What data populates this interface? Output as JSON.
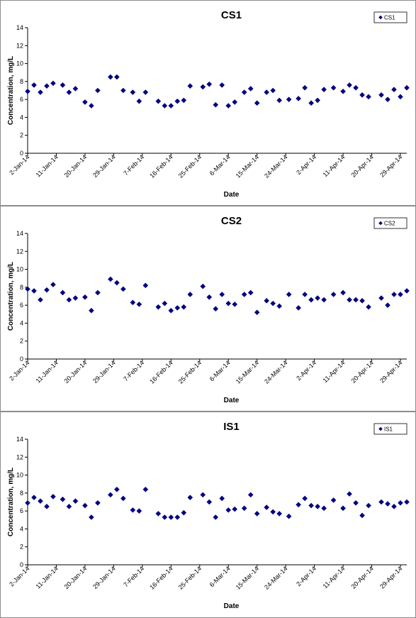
{
  "chart_data": [
    {
      "type": "scatter",
      "title": "CS1",
      "xlabel": "Date",
      "ylabel": "Concentration, mg/L",
      "ylim": [
        0,
        14
      ],
      "yticks": [
        "0",
        "2",
        "4",
        "6",
        "8",
        "10",
        "12",
        "14"
      ],
      "xlim": [
        "2014-01-02",
        "2014-05-01"
      ],
      "xticks": [
        "2-Jan-14",
        "11-Jan-14",
        "20-Jan-14",
        "29-Jan-14",
        "7-Feb-14",
        "16-Feb-14",
        "25-Feb-14",
        "6-Mar-14",
        "15-Mar-14",
        "24-Mar-14",
        "2-Apr-14",
        "11-Apr-14",
        "20-Apr-14",
        "29-Apr-14"
      ],
      "legend": "top-right",
      "marker_color": "#000080",
      "series": [
        {
          "name": "CS1",
          "points": [
            [
              "2014-01-02",
              6.9
            ],
            [
              "2014-01-04",
              7.6
            ],
            [
              "2014-01-06",
              6.8
            ],
            [
              "2014-01-08",
              7.5
            ],
            [
              "2014-01-10",
              7.8
            ],
            [
              "2014-01-13",
              7.6
            ],
            [
              "2014-01-15",
              6.8
            ],
            [
              "2014-01-17",
              7.2
            ],
            [
              "2014-01-20",
              5.7
            ],
            [
              "2014-01-22",
              5.3
            ],
            [
              "2014-01-24",
              7.0
            ],
            [
              "2014-01-28",
              8.5
            ],
            [
              "2014-01-30",
              8.5
            ],
            [
              "2014-02-01",
              7.0
            ],
            [
              "2014-02-04",
              6.8
            ],
            [
              "2014-02-06",
              5.8
            ],
            [
              "2014-02-08",
              6.8
            ],
            [
              "2014-02-12",
              5.8
            ],
            [
              "2014-02-14",
              5.3
            ],
            [
              "2014-02-16",
              5.3
            ],
            [
              "2014-02-18",
              5.8
            ],
            [
              "2014-02-20",
              5.9
            ],
            [
              "2014-02-22",
              7.5
            ],
            [
              "2014-02-26",
              7.4
            ],
            [
              "2014-02-28",
              7.7
            ],
            [
              "2014-03-02",
              5.4
            ],
            [
              "2014-03-04",
              7.6
            ],
            [
              "2014-03-06",
              5.3
            ],
            [
              "2014-03-08",
              5.7
            ],
            [
              "2014-03-11",
              6.8
            ],
            [
              "2014-03-13",
              7.2
            ],
            [
              "2014-03-15",
              5.6
            ],
            [
              "2014-03-18",
              6.8
            ],
            [
              "2014-03-20",
              7.0
            ],
            [
              "2014-03-22",
              5.9
            ],
            [
              "2014-03-25",
              6.0
            ],
            [
              "2014-03-28",
              6.1
            ],
            [
              "2014-03-30",
              7.3
            ],
            [
              "2014-04-01",
              5.6
            ],
            [
              "2014-04-03",
              5.9
            ],
            [
              "2014-04-05",
              7.1
            ],
            [
              "2014-04-08",
              7.3
            ],
            [
              "2014-04-11",
              6.9
            ],
            [
              "2014-04-13",
              7.6
            ],
            [
              "2014-04-15",
              7.3
            ],
            [
              "2014-04-17",
              6.5
            ],
            [
              "2014-04-19",
              6.3
            ],
            [
              "2014-04-23",
              6.5
            ],
            [
              "2014-04-25",
              6.0
            ],
            [
              "2014-04-27",
              7.1
            ],
            [
              "2014-04-29",
              6.3
            ],
            [
              "2014-05-01",
              7.3
            ]
          ]
        }
      ]
    },
    {
      "type": "scatter",
      "title": "CS2",
      "xlabel": "Date",
      "ylabel": "Concentration, mg/L",
      "ylim": [
        0,
        14
      ],
      "yticks": [
        "0",
        "2",
        "4",
        "6",
        "8",
        "10",
        "12",
        "14"
      ],
      "xlim": [
        "2014-01-02",
        "2014-05-01"
      ],
      "xticks": [
        "2-Jan-14",
        "11-Jan-14",
        "20-Jan-14",
        "29-Jan-14",
        "7-Feb-14",
        "16-Feb-14",
        "25-Feb-14",
        "6-Mar-14",
        "15-Mar-14",
        "24-Mar-14",
        "2-Apr-14",
        "11-Apr-14",
        "20-Apr-14",
        "29-Apr-14"
      ],
      "legend": "top-right",
      "marker_color": "#000080",
      "series": [
        {
          "name": "CS2",
          "points": [
            [
              "2014-01-02",
              7.8
            ],
            [
              "2014-01-04",
              7.6
            ],
            [
              "2014-01-06",
              6.6
            ],
            [
              "2014-01-08",
              7.7
            ],
            [
              "2014-01-10",
              8.3
            ],
            [
              "2014-01-13",
              7.4
            ],
            [
              "2014-01-15",
              6.6
            ],
            [
              "2014-01-17",
              6.8
            ],
            [
              "2014-01-20",
              6.9
            ],
            [
              "2014-01-22",
              5.4
            ],
            [
              "2014-01-24",
              7.4
            ],
            [
              "2014-01-28",
              8.9
            ],
            [
              "2014-01-30",
              8.5
            ],
            [
              "2014-02-01",
              7.8
            ],
            [
              "2014-02-04",
              6.3
            ],
            [
              "2014-02-06",
              6.1
            ],
            [
              "2014-02-08",
              8.2
            ],
            [
              "2014-02-12",
              5.8
            ],
            [
              "2014-02-14",
              6.2
            ],
            [
              "2014-02-16",
              5.4
            ],
            [
              "2014-02-18",
              5.7
            ],
            [
              "2014-02-20",
              5.8
            ],
            [
              "2014-02-22",
              7.2
            ],
            [
              "2014-02-26",
              8.1
            ],
            [
              "2014-02-28",
              6.9
            ],
            [
              "2014-03-02",
              5.6
            ],
            [
              "2014-03-04",
              7.2
            ],
            [
              "2014-03-06",
              6.2
            ],
            [
              "2014-03-08",
              6.1
            ],
            [
              "2014-03-11",
              7.2
            ],
            [
              "2014-03-13",
              7.4
            ],
            [
              "2014-03-15",
              5.2
            ],
            [
              "2014-03-18",
              6.5
            ],
            [
              "2014-03-20",
              6.2
            ],
            [
              "2014-03-22",
              5.9
            ],
            [
              "2014-03-25",
              7.2
            ],
            [
              "2014-03-28",
              5.7
            ],
            [
              "2014-03-30",
              7.2
            ],
            [
              "2014-04-01",
              6.6
            ],
            [
              "2014-04-03",
              6.8
            ],
            [
              "2014-04-05",
              6.6
            ],
            [
              "2014-04-08",
              7.2
            ],
            [
              "2014-04-11",
              7.4
            ],
            [
              "2014-04-13",
              6.6
            ],
            [
              "2014-04-15",
              6.6
            ],
            [
              "2014-04-17",
              6.5
            ],
            [
              "2014-04-19",
              5.8
            ],
            [
              "2014-04-23",
              6.8
            ],
            [
              "2014-04-25",
              6.0
            ],
            [
              "2014-04-27",
              7.2
            ],
            [
              "2014-04-29",
              7.2
            ],
            [
              "2014-05-01",
              7.6
            ]
          ]
        }
      ]
    },
    {
      "type": "scatter",
      "title": "IS1",
      "xlabel": "Date",
      "ylabel": "Concentration, mg/L",
      "ylim": [
        0,
        14
      ],
      "yticks": [
        "0",
        "2",
        "4",
        "6",
        "8",
        "10",
        "12",
        "14"
      ],
      "xlim": [
        "2014-01-02",
        "2014-05-01"
      ],
      "xticks": [
        "2-Jan-14",
        "11-Jan-14",
        "20-Jan-14",
        "29-Jan-14",
        "7-Feb-14",
        "16-Feb-14",
        "25-Feb-14",
        "6-Mar-14",
        "15-Mar-14",
        "24-Mar-14",
        "2-Apr-14",
        "11-Apr-14",
        "20-Apr-14",
        "29-Apr-14"
      ],
      "legend": "top-right",
      "marker_color": "#000080",
      "series": [
        {
          "name": "IS1",
          "points": [
            [
              "2014-01-02",
              6.9
            ],
            [
              "2014-01-04",
              7.5
            ],
            [
              "2014-01-06",
              7.1
            ],
            [
              "2014-01-08",
              6.5
            ],
            [
              "2014-01-10",
              7.6
            ],
            [
              "2014-01-13",
              7.3
            ],
            [
              "2014-01-15",
              6.5
            ],
            [
              "2014-01-17",
              7.1
            ],
            [
              "2014-01-20",
              6.6
            ],
            [
              "2014-01-22",
              5.3
            ],
            [
              "2014-01-24",
              6.9
            ],
            [
              "2014-01-28",
              7.8
            ],
            [
              "2014-01-30",
              8.4
            ],
            [
              "2014-02-01",
              7.4
            ],
            [
              "2014-02-04",
              6.1
            ],
            [
              "2014-02-06",
              6.0
            ],
            [
              "2014-02-08",
              8.4
            ],
            [
              "2014-02-12",
              5.7
            ],
            [
              "2014-02-14",
              5.3
            ],
            [
              "2014-02-16",
              5.3
            ],
            [
              "2014-02-18",
              5.3
            ],
            [
              "2014-02-20",
              5.8
            ],
            [
              "2014-02-22",
              7.5
            ],
            [
              "2014-02-26",
              7.8
            ],
            [
              "2014-02-28",
              7.0
            ],
            [
              "2014-03-02",
              5.3
            ],
            [
              "2014-03-04",
              7.4
            ],
            [
              "2014-03-06",
              6.1
            ],
            [
              "2014-03-08",
              6.2
            ],
            [
              "2014-03-11",
              6.3
            ],
            [
              "2014-03-13",
              7.8
            ],
            [
              "2014-03-15",
              5.7
            ],
            [
              "2014-03-18",
              6.4
            ],
            [
              "2014-03-20",
              5.9
            ],
            [
              "2014-03-22",
              5.7
            ],
            [
              "2014-03-25",
              5.4
            ],
            [
              "2014-03-28",
              6.7
            ],
            [
              "2014-03-30",
              7.4
            ],
            [
              "2014-04-01",
              6.6
            ],
            [
              "2014-04-03",
              6.5
            ],
            [
              "2014-04-05",
              6.3
            ],
            [
              "2014-04-08",
              7.2
            ],
            [
              "2014-04-11",
              6.3
            ],
            [
              "2014-04-13",
              7.9
            ],
            [
              "2014-04-15",
              6.9
            ],
            [
              "2014-04-17",
              5.5
            ],
            [
              "2014-04-19",
              6.6
            ],
            [
              "2014-04-23",
              7.0
            ],
            [
              "2014-04-25",
              6.8
            ],
            [
              "2014-04-27",
              6.5
            ],
            [
              "2014-04-29",
              6.9
            ],
            [
              "2014-05-01",
              7.0
            ]
          ]
        }
      ]
    }
  ]
}
